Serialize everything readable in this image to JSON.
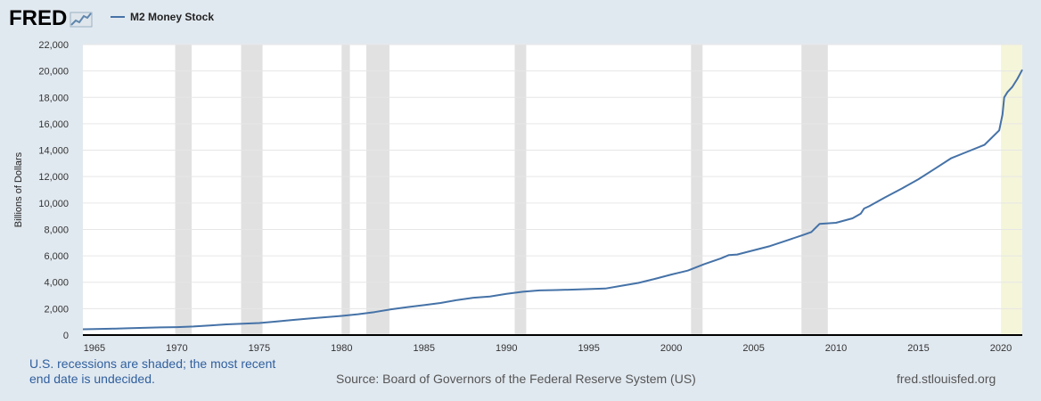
{
  "brand": {
    "logo_text": "FRED",
    "logo_icon": "chart-line-icon"
  },
  "colors": {
    "background": "#e1e9f0",
    "line": "#4572a7",
    "recession": "#e1e1e1",
    "undecided": "#f5f5da",
    "note": "#2f5f9e"
  },
  "chart_data": {
    "type": "line",
    "title": "",
    "legend": "M2 Money Stock",
    "ylabel": "Billions of Dollars",
    "xlabel": "",
    "xlim": [
      1964.3,
      2021.3
    ],
    "ylim": [
      0,
      22000
    ],
    "yticks": [
      0,
      2000,
      4000,
      6000,
      8000,
      10000,
      12000,
      14000,
      16000,
      18000,
      20000,
      22000
    ],
    "ytick_labels": [
      "0",
      "2,000",
      "4,000",
      "6,000",
      "8,000",
      "10,000",
      "12,000",
      "14,000",
      "16,000",
      "18,000",
      "20,000",
      "22,000"
    ],
    "xticks": [
      1965,
      1970,
      1975,
      1980,
      1985,
      1990,
      1995,
      2000,
      2005,
      2010,
      2015,
      2020
    ],
    "xtick_labels": [
      "1965",
      "1970",
      "1975",
      "1980",
      "1985",
      "1990",
      "1995",
      "2000",
      "2005",
      "2010",
      "2015",
      "2020"
    ],
    "recessions": [
      {
        "start": 1969.9,
        "end": 1970.9
      },
      {
        "start": 1973.9,
        "end": 1975.2
      },
      {
        "start": 1980.0,
        "end": 1980.5
      },
      {
        "start": 1981.5,
        "end": 1982.9
      },
      {
        "start": 1990.5,
        "end": 1991.2
      },
      {
        "start": 2001.2,
        "end": 2001.9
      },
      {
        "start": 2007.9,
        "end": 2009.5
      }
    ],
    "undecided_recession": {
      "start": 2020.0,
      "end": 2021.3
    },
    "series": [
      {
        "name": "M2 Money Stock",
        "x": [
          1964.3,
          1965,
          1966,
          1967,
          1968,
          1969,
          1970,
          1971,
          1972,
          1973,
          1974,
          1975,
          1976,
          1977,
          1978,
          1979,
          1980,
          1981,
          1982,
          1983,
          1984,
          1985,
          1986,
          1987,
          1988,
          1989,
          1990,
          1991,
          1992,
          1993,
          1994,
          1995,
          1996,
          1997,
          1998,
          1999,
          2000,
          2001,
          2002,
          2003,
          2003.5,
          2004,
          2005,
          2006,
          2007,
          2008,
          2008.5,
          2009,
          2010,
          2011,
          2011.5,
          2011.7,
          2012,
          2013,
          2014,
          2015,
          2016,
          2017,
          2018,
          2019,
          2019.9,
          2020.1,
          2020.2,
          2020.4,
          2020.7,
          2021.0,
          2021.3
        ],
        "values": [
          440,
          460,
          480,
          510,
          550,
          580,
          600,
          650,
          730,
          810,
          860,
          910,
          1020,
          1140,
          1250,
          1350,
          1450,
          1580,
          1740,
          1950,
          2120,
          2270,
          2430,
          2650,
          2830,
          2920,
          3120,
          3280,
          3380,
          3410,
          3440,
          3480,
          3520,
          3740,
          3950,
          4250,
          4580,
          4880,
          5370,
          5800,
          6060,
          6100,
          6420,
          6740,
          7160,
          7580,
          7800,
          8420,
          8500,
          8840,
          9200,
          9580,
          9750,
          10450,
          11100,
          11800,
          12600,
          13400,
          13900,
          14400,
          15500,
          16700,
          18000,
          18400,
          18800,
          19400,
          20100
        ]
      }
    ]
  },
  "footer": {
    "note": "U.S. recessions are shaded; the most recent end date is undecided.",
    "source": "Source: Board of Governors of the Federal Reserve System (US)",
    "site": "fred.stlouisfed.org"
  }
}
